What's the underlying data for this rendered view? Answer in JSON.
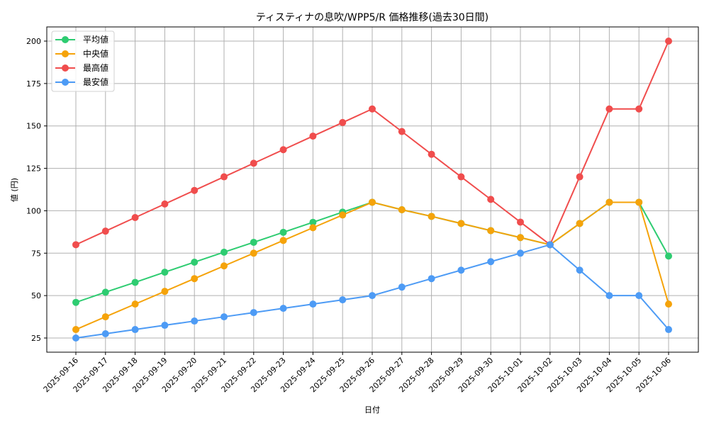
{
  "chart_data": {
    "type": "line",
    "title": "ティスティナの息吹/WPP5/R 価格推移(過去30日間)",
    "xlabel": "日付",
    "ylabel": "値 (円)",
    "ylim": [
      16,
      209
    ],
    "yticks": [
      25,
      50,
      75,
      100,
      125,
      150,
      175,
      200
    ],
    "grid": true,
    "legend_position": "upper left",
    "x": [
      "2025-09-16",
      "2025-09-17",
      "2025-09-18",
      "2025-09-19",
      "2025-09-20",
      "2025-09-21",
      "2025-09-22",
      "2025-09-23",
      "2025-09-24",
      "2025-09-25",
      "2025-09-26",
      "2025-09-27",
      "2025-09-28",
      "2025-09-29",
      "2025-09-30",
      "2025-10-01",
      "2025-10-02",
      "2025-10-03",
      "2025-10-04",
      "2025-10-05",
      "2025-10-06"
    ],
    "series": [
      {
        "name": "平均値",
        "color": "#2ecc71",
        "values": [
          46,
          52,
          57.8,
          63.8,
          69.7,
          75.6,
          81.4,
          87.3,
          93.2,
          99.2,
          105,
          100.6,
          96.7,
          92.5,
          88.3,
          84.2,
          80,
          92.5,
          105,
          105,
          73.3
        ]
      },
      {
        "name": "中央値",
        "color": "#f5a30a",
        "values": [
          30,
          37.5,
          45,
          52.5,
          60,
          67.5,
          75,
          82.5,
          90,
          97.5,
          105,
          100.6,
          96.7,
          92.5,
          88.3,
          84.2,
          80,
          92.5,
          105,
          105,
          45
        ]
      },
      {
        "name": "最高値",
        "color": "#f04d4d",
        "values": [
          80,
          88,
          96,
          104,
          112,
          120,
          128,
          136,
          144,
          152,
          160,
          146.7,
          133.3,
          120,
          106.7,
          93.3,
          80,
          120,
          160,
          160,
          200
        ]
      },
      {
        "name": "最安値",
        "color": "#4d9bf5",
        "values": [
          25,
          27.5,
          30,
          32.5,
          35,
          37.5,
          40,
          42.5,
          45,
          47.5,
          50,
          55,
          60,
          65,
          70,
          75,
          80,
          65,
          50,
          50,
          30
        ]
      }
    ]
  }
}
